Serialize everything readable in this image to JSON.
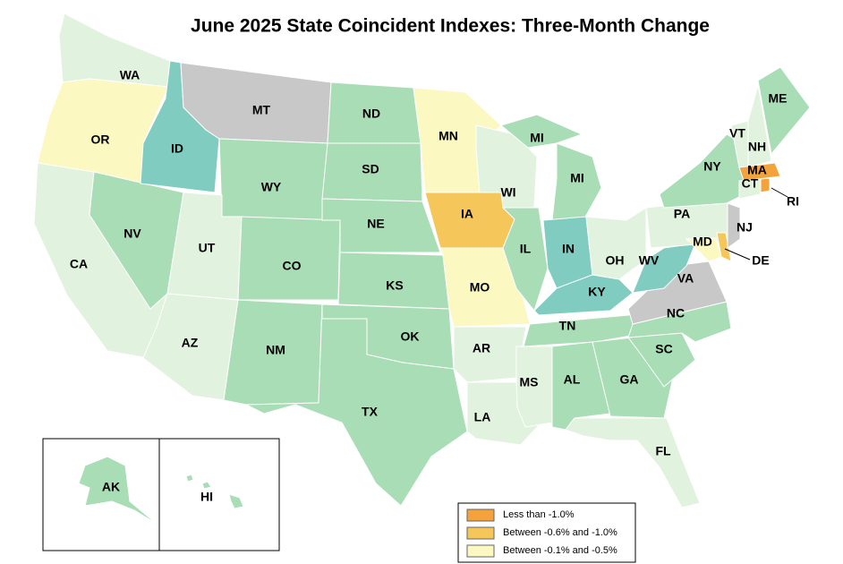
{
  "title": "June 2025 State Coincident Indexes: Three-Month Change",
  "states": [
    {
      "label": "WA",
      "color": "#e1f3de"
    },
    {
      "label": "OR",
      "color": "#fbf8c2"
    },
    {
      "label": "CA",
      "color": "#e1f3de"
    },
    {
      "label": "NV",
      "color": "#a9ddb6"
    },
    {
      "label": "ID",
      "color": "#80ccc1"
    },
    {
      "label": "MT",
      "color": "#c8c8c8"
    },
    {
      "label": "WY",
      "color": "#a9ddb6"
    },
    {
      "label": "UT",
      "color": "#e1f3de"
    },
    {
      "label": "CO",
      "color": "#a9ddb6"
    },
    {
      "label": "AZ",
      "color": "#e1f3de"
    },
    {
      "label": "NM",
      "color": "#a9ddb6"
    },
    {
      "label": "ND",
      "color": "#a9ddb6"
    },
    {
      "label": "SD",
      "color": "#a9ddb6"
    },
    {
      "label": "NE",
      "color": "#a9ddb6"
    },
    {
      "label": "KS",
      "color": "#a9ddb6"
    },
    {
      "label": "OK",
      "color": "#a9ddb6"
    },
    {
      "label": "TX",
      "color": "#a9ddb6"
    },
    {
      "label": "MN",
      "color": "#fbf8c2"
    },
    {
      "label": "IA",
      "color": "#f5c65a"
    },
    {
      "label": "MO",
      "color": "#fbf8c2"
    },
    {
      "label": "AR",
      "color": "#e1f3de"
    },
    {
      "label": "LA",
      "color": "#e1f3de"
    },
    {
      "label": "WI",
      "color": "#e1f3de"
    },
    {
      "label": "IL",
      "color": "#a9ddb6"
    },
    {
      "label": "MI",
      "color": "#a9ddb6"
    },
    {
      "label": "MI",
      "color": "#a9ddb6"
    },
    {
      "label": "IN",
      "color": "#80ccc1"
    },
    {
      "label": "OH",
      "color": "#e1f3de"
    },
    {
      "label": "KY",
      "color": "#80ccc1"
    },
    {
      "label": "TN",
      "color": "#a9ddb6"
    },
    {
      "label": "MS",
      "color": "#e1f3de"
    },
    {
      "label": "AL",
      "color": "#a9ddb6"
    },
    {
      "label": "GA",
      "color": "#a9ddb6"
    },
    {
      "label": "FL",
      "color": "#e1f3de"
    },
    {
      "label": "SC",
      "color": "#a9ddb6"
    },
    {
      "label": "NC",
      "color": "#a9ddb6"
    },
    {
      "label": "VA",
      "color": "#c8c8c8"
    },
    {
      "label": "WV",
      "color": "#80ccc1"
    },
    {
      "label": "PA",
      "color": "#e1f3de"
    },
    {
      "label": "NY",
      "color": "#a9ddb6"
    },
    {
      "label": "MD",
      "color": "#fbf8c2"
    },
    {
      "label": "DE",
      "color": "#f5c65a"
    },
    {
      "label": "NJ",
      "color": "#c8c8c8"
    },
    {
      "label": "VT",
      "color": "#e1f3de"
    },
    {
      "label": "NH",
      "color": "#e1f3de"
    },
    {
      "label": "ME",
      "color": "#a9ddb6"
    },
    {
      "label": "MA",
      "color": "#f4a23c"
    },
    {
      "label": "CT",
      "color": "#e1f3de"
    },
    {
      "label": "RI",
      "color": "#f4a23c"
    },
    {
      "label": "AK",
      "color": "#a9ddb6"
    },
    {
      "label": "HI",
      "color": "#a9ddb6"
    }
  ],
  "legend": [
    {
      "label": "Less than -1.0%",
      "color": "#f4a23c"
    },
    {
      "label": "Between -0.6% and -1.0%",
      "color": "#f5c65a"
    },
    {
      "label": "Between -0.1% and -0.5%",
      "color": "#fbf8c2"
    }
  ]
}
